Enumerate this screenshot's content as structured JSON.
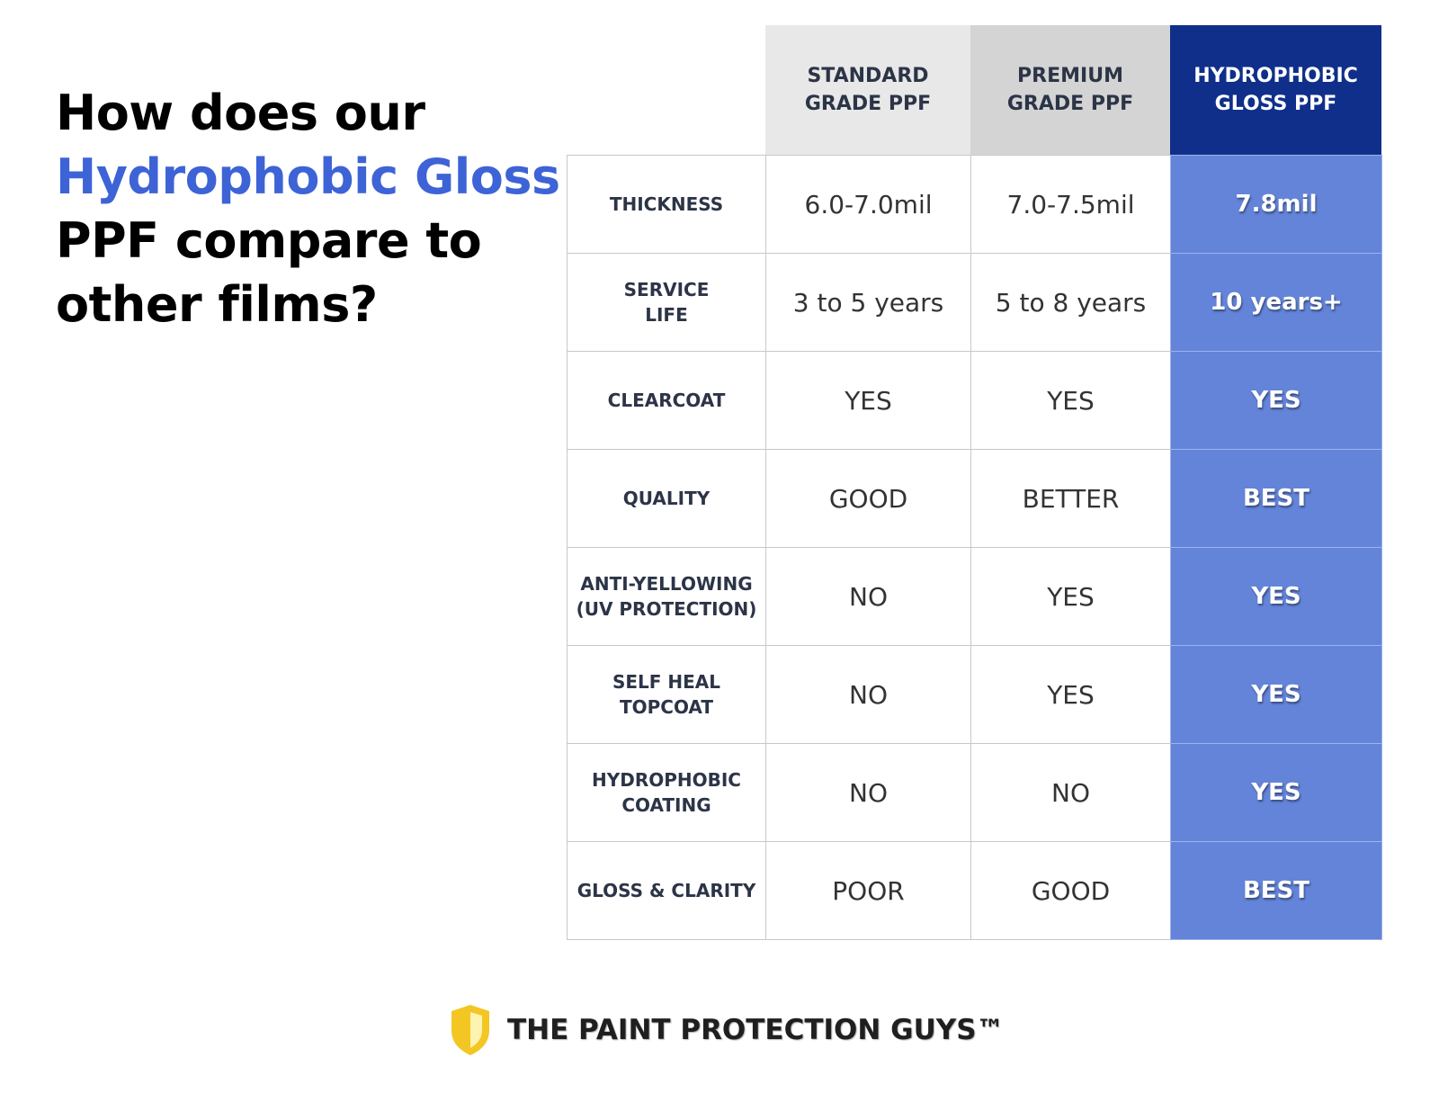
{
  "heading": {
    "lines": [
      "How does our",
      "Hydrophobic Gloss",
      "PPF compare to",
      "other films?"
    ]
  },
  "table": {
    "columns": [
      [
        "STANDARD",
        "GRADE PPF"
      ],
      [
        "PREMIUM",
        "GRADE PPF"
      ],
      [
        "HYDROPHOBIC",
        "GLOSS PPF"
      ]
    ],
    "rows": [
      {
        "label": [
          "THICKNESS"
        ],
        "cells": [
          "6.0-7.0mil",
          "7.0-7.5mil",
          "7.8mil"
        ]
      },
      {
        "label": [
          "SERVICE",
          "LIFE"
        ],
        "cells": [
          "3 to 5 years",
          "5 to 8 years",
          "10 years+"
        ]
      },
      {
        "label": [
          "CLEARCOAT"
        ],
        "cells": [
          "YES",
          "YES",
          "YES"
        ]
      },
      {
        "label": [
          "QUALITY"
        ],
        "cells": [
          "GOOD",
          "BETTER",
          "BEST"
        ]
      },
      {
        "label": [
          "ANTI-YELLOWING",
          "(UV PROTECTION)"
        ],
        "cells": [
          "NO",
          "YES",
          "YES"
        ]
      },
      {
        "label": [
          "SELF HEAL",
          "TOPCOAT"
        ],
        "cells": [
          "NO",
          "YES",
          "YES"
        ]
      },
      {
        "label": [
          "HYDROPHOBIC",
          "COATING"
        ],
        "cells": [
          "NO",
          "NO",
          "YES"
        ]
      },
      {
        "label": [
          "GLOSS & CLARITY"
        ],
        "cells": [
          "POOR",
          "GOOD",
          "BEST"
        ]
      }
    ]
  },
  "footer": {
    "brand": "THE PAINT PROTECTION GUYS™"
  }
}
